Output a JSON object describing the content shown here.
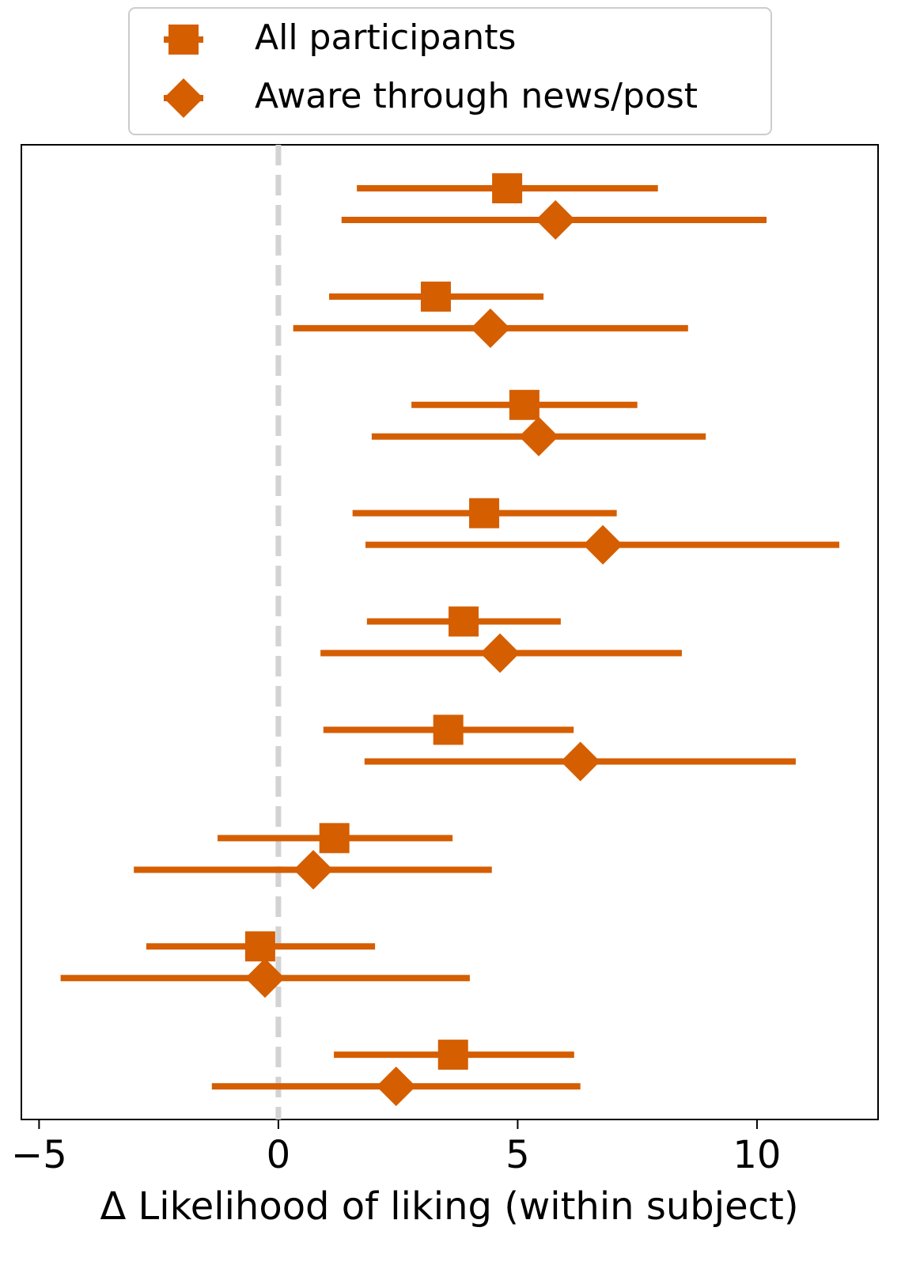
{
  "chart_data": {
    "type": "forest",
    "xlabel": "Δ Likelihood of liking (within subject)",
    "xlim": [
      -5.37,
      12.53
    ],
    "xticks": [
      {
        "value": -5,
        "label": "−5"
      },
      0,
      5,
      10
    ],
    "reference_line": 0,
    "legend": "upper center",
    "series": [
      {
        "name": "All participants",
        "color": "#d55e00",
        "marker": "square",
        "values": [
          4.78,
          3.29,
          5.14,
          4.3,
          3.87,
          3.55,
          1.17,
          -0.38,
          3.65
        ],
        "ci_low": [
          1.64,
          1.06,
          2.78,
          1.55,
          1.85,
          0.94,
          -1.27,
          -2.76,
          1.16
        ],
        "ci_high": [
          7.93,
          5.54,
          7.5,
          7.07,
          5.9,
          6.17,
          3.64,
          2.02,
          6.18
        ]
      },
      {
        "name": "Aware through news/post",
        "color": "#d55e00",
        "marker": "diamond",
        "values": [
          5.79,
          4.43,
          5.44,
          6.78,
          4.63,
          6.31,
          0.73,
          -0.28,
          2.46
        ],
        "ci_low": [
          1.32,
          0.31,
          1.95,
          1.82,
          0.88,
          1.8,
          -3.02,
          -4.55,
          -1.39
        ],
        "ci_high": [
          10.2,
          8.56,
          8.93,
          11.72,
          8.43,
          10.81,
          4.46,
          4.0,
          6.31
        ]
      }
    ]
  }
}
